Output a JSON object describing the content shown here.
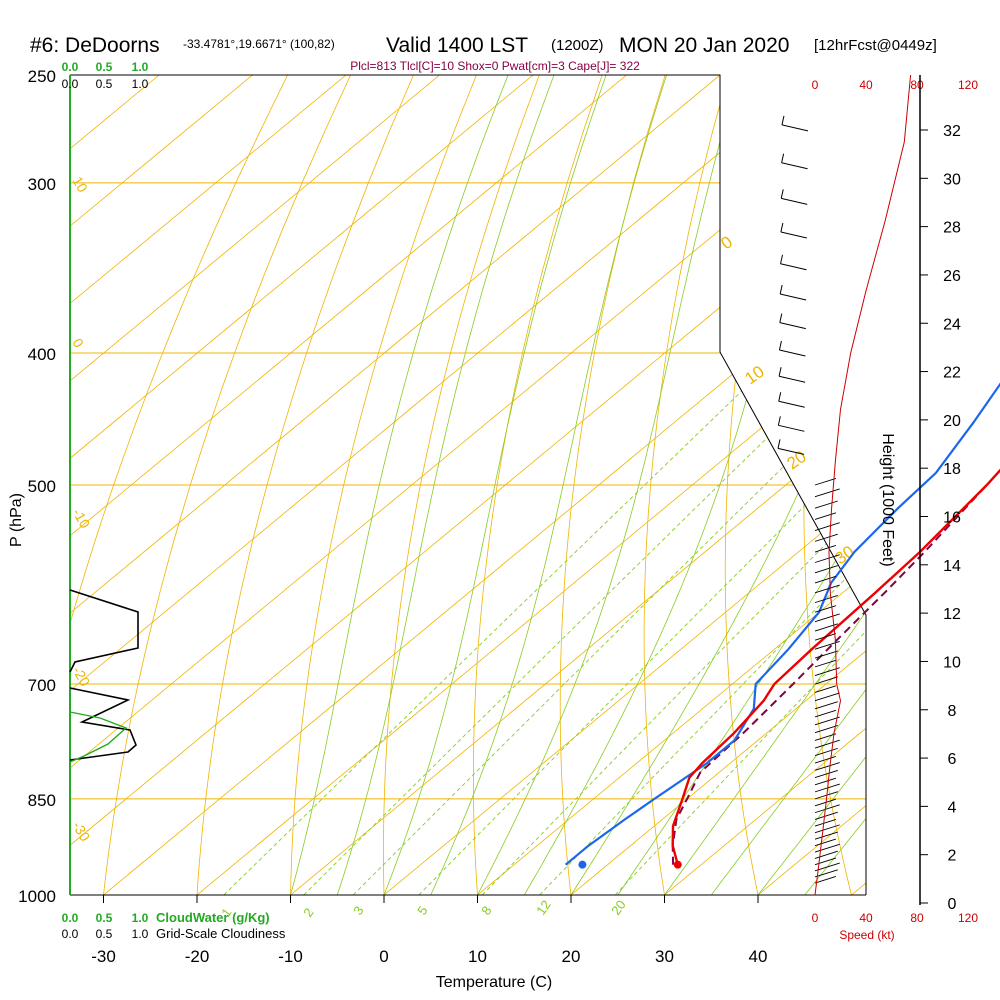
{
  "header": {
    "station": "#6: DeDoorns",
    "coords": "-33.4781°,19.6671° (100,82)",
    "valid": "Valid 1400 LST",
    "utc": "(1200Z)",
    "date": "MON 20 Jan 2020",
    "fcst": "[12hrFcst@0449z]",
    "params": "Plcl=813 Tlcl[C]=10 Shox=0 Pwat[cm]=3 Cape[J]= 322"
  },
  "colors": {
    "isotherm": "#f0b400",
    "dry_adiabat": "#f0b400",
    "moist_adiabat": "#88cc22",
    "mixing_ratio": "#88cc22",
    "temperature": "#ee0000",
    "dewpoint": "#1a66ee",
    "parcel": "#880044",
    "cloud_water": "#22aa22",
    "cloudiness": "#000000",
    "speed": "#cc0000"
  },
  "left_scales": {
    "cloud_water_ticks": [
      "0.0",
      "0.5",
      "1.0"
    ],
    "cloudiness_ticks": [
      "0.0",
      "0.5",
      "1.0"
    ],
    "cloud_water_label": "CloudWater (g/Kg)",
    "cloudiness_label": "Grid-Scale Cloudiness"
  },
  "speed_scale": {
    "ticks": [
      "0",
      "40",
      "80",
      "120"
    ],
    "label": "Speed (kt)"
  },
  "height_axis": {
    "label": "Height (1000 Feet)",
    "ticks": [
      "0",
      "2",
      "4",
      "6",
      "8",
      "10",
      "12",
      "14",
      "16",
      "18",
      "20",
      "22",
      "24",
      "26",
      "28",
      "30",
      "32"
    ]
  },
  "chart_data": {
    "type": "skew-t",
    "xlabel": "Temperature (C)",
    "ylabel": "P (hPa)",
    "x_ticks": [
      -30,
      -20,
      -10,
      0,
      10,
      20,
      30,
      40
    ],
    "p_ticks": [
      250,
      300,
      400,
      500,
      700,
      850,
      1000
    ],
    "xlim": [
      -33,
      40
    ],
    "plim": [
      1000,
      250
    ],
    "adiabat_labels_left": [
      "10",
      "0",
      "-10",
      "-20",
      "-30"
    ],
    "adiabat_labels_right": [
      "0",
      "10",
      "20",
      "30"
    ],
    "mixing_ratio_labels": [
      "1",
      "2",
      "3",
      "5",
      "8",
      "12",
      "20"
    ],
    "temperature": [
      [
        950,
        27.5
      ],
      [
        920,
        24.5
      ],
      [
        890,
        22
      ],
      [
        850,
        19.5
      ],
      [
        820,
        17.5
      ],
      [
        800,
        17
      ],
      [
        760,
        16.5
      ],
      [
        720,
        15.5
      ],
      [
        700,
        14.5
      ],
      [
        660,
        14
      ],
      [
        600,
        13.5
      ],
      [
        560,
        13
      ],
      [
        500,
        11.5
      ],
      [
        450,
        9.5
      ],
      [
        400,
        7.5
      ],
      [
        350,
        6.5
      ],
      [
        300,
        6
      ],
      [
        260,
        6
      ]
    ],
    "dewpoint": [
      [
        950,
        15.5
      ],
      [
        920,
        15.5
      ],
      [
        880,
        16
      ],
      [
        850,
        16.5
      ],
      [
        800,
        17.5
      ],
      [
        770,
        17.5
      ],
      [
        730,
        15.5
      ],
      [
        700,
        12.5
      ],
      [
        660,
        11.5
      ],
      [
        620,
        10
      ],
      [
        590,
        7.5
      ],
      [
        560,
        6
      ],
      [
        520,
        5
      ],
      [
        490,
        4.5
      ],
      [
        450,
        2
      ],
      [
        410,
        -1
      ],
      [
        380,
        -4
      ],
      [
        360,
        -7
      ],
      [
        340,
        -10
      ],
      [
        320,
        -14
      ],
      [
        300,
        -16
      ],
      [
        270,
        -16
      ],
      [
        255,
        -17.5
      ]
    ],
    "parcel": [
      [
        950,
        27
      ],
      [
        920,
        24.5
      ],
      [
        880,
        21.5
      ],
      [
        850,
        20
      ],
      [
        813,
        18
      ],
      [
        760,
        17.5
      ],
      [
        700,
        16.5
      ],
      [
        650,
        15.5
      ],
      [
        600,
        14.5
      ],
      [
        560,
        13.5
      ],
      [
        500,
        11.5
      ],
      [
        450,
        9.5
      ],
      [
        410,
        8
      ]
    ],
    "surface_temperature": 27.5,
    "surface_dewpoint": 17.3,
    "wind_speed_kt": [
      [
        1000,
        0
      ],
      [
        950,
        3
      ],
      [
        900,
        6
      ],
      [
        850,
        9
      ],
      [
        800,
        12
      ],
      [
        760,
        15
      ],
      [
        720,
        20
      ],
      [
        700,
        17
      ],
      [
        650,
        16
      ],
      [
        600,
        12
      ],
      [
        560,
        11
      ],
      [
        520,
        13
      ],
      [
        480,
        16
      ],
      [
        440,
        20
      ],
      [
        400,
        28
      ],
      [
        360,
        40
      ],
      [
        320,
        55
      ],
      [
        280,
        70
      ],
      [
        250,
        75
      ]
    ]
  }
}
